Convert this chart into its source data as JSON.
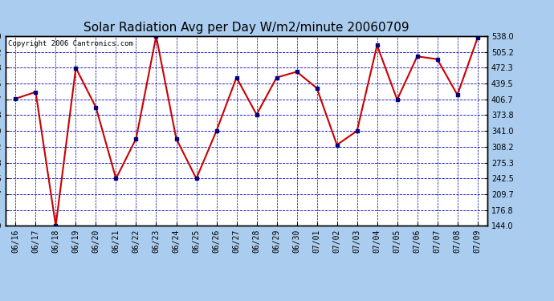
{
  "title": "Solar Radiation Avg per Day W/m2/minute 20060709",
  "copyright_text": "Copyright 2006 Cantronics.com",
  "x_labels": [
    "06/16",
    "06/17",
    "06/18",
    "06/19",
    "06/20",
    "06/21",
    "06/22",
    "06/23",
    "06/24",
    "06/25",
    "06/26",
    "06/27",
    "06/28",
    "06/29",
    "06/30",
    "07/01",
    "07/02",
    "07/03",
    "07/04",
    "07/05",
    "07/06",
    "07/07",
    "07/08",
    "07/09"
  ],
  "y_values": [
    408,
    422,
    144,
    472,
    390,
    242,
    325,
    538,
    325,
    242,
    341,
    452,
    375,
    452,
    464,
    430,
    312,
    341,
    519,
    406,
    496,
    490,
    416,
    534
  ],
  "y_min": 144.0,
  "y_max": 538.0,
  "y_ticks": [
    144.0,
    176.8,
    209.7,
    242.5,
    275.3,
    308.2,
    341.0,
    373.8,
    406.7,
    439.5,
    472.3,
    505.2,
    538.0
  ],
  "line_color": "#cc0000",
  "marker_color": "#000080",
  "fig_bg_color": "#aaccee",
  "plot_bg_color": "#ffffff",
  "grid_h_color": "#0000cc",
  "grid_v_color": "#000080",
  "border_color": "#000000",
  "title_fontsize": 11,
  "copyright_fontsize": 6.5,
  "tick_fontsize": 7
}
